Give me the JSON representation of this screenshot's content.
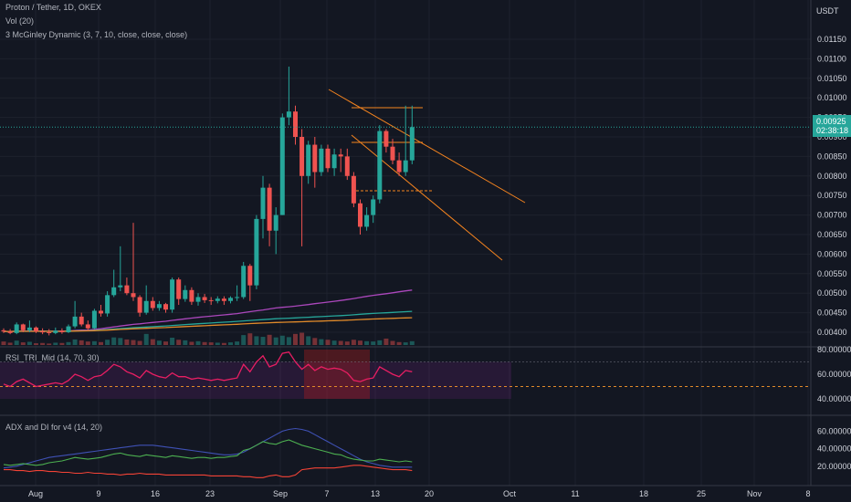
{
  "header": {
    "symbol_line": "Proton / Tether, 1D, OKEX",
    "vol_label": "Vol (20)",
    "mcginley_label": "3 McGinley Dynamic (3, 7, 10, close, close, close)",
    "currency": "USDT"
  },
  "last_price": {
    "value": "0.00925",
    "countdown": "02:38:18",
    "color": "#26a69a"
  },
  "panels": {
    "rsi_label": "RSI_TRI_Mid (14, 70, 30)",
    "adx_label": "ADX and DI for v4 (14, 20)"
  },
  "colors": {
    "up": "#26a69a",
    "down": "#ef5350",
    "background": "#131722",
    "rsi": "#e91e63",
    "mcginley_fast": "#ab47bc",
    "mcginley_mid": "#26a69a",
    "mcginley_slow": "#e18a2a",
    "adx": "#3f51b5",
    "di_plus": "#4caf50",
    "di_minus": "#f44336",
    "channel": "#f5841f"
  },
  "chart_data": {
    "type": "candlestick",
    "interval": "1D",
    "y_axis": {
      "ticks": [
        "0.01150",
        "0.01100",
        "0.01050",
        "0.01000",
        "0.00950",
        "0.00900",
        "0.00850",
        "0.00800",
        "0.00750",
        "0.00700",
        "0.00650",
        "0.00600",
        "0.00550",
        "0.00500",
        "0.00450",
        "0.00400"
      ],
      "range": [
        0.0038,
        0.0121
      ]
    },
    "x_axis": {
      "ticks": [
        "Aug",
        "9",
        "16",
        "23",
        "Sep",
        "7",
        "13",
        "20",
        "Oct",
        "11",
        "18",
        "25",
        "Nov",
        "8"
      ]
    },
    "ohlc": [
      [
        0.00405,
        0.0041,
        0.00398,
        0.00402
      ],
      [
        0.00402,
        0.00408,
        0.00395,
        0.00398
      ],
      [
        0.00398,
        0.00425,
        0.00395,
        0.0042
      ],
      [
        0.0042,
        0.00422,
        0.004,
        0.00405
      ],
      [
        0.00405,
        0.0043,
        0.004,
        0.00412
      ],
      [
        0.00412,
        0.00415,
        0.00398,
        0.00402
      ],
      [
        0.00402,
        0.0041,
        0.00395,
        0.004
      ],
      [
        0.004,
        0.00408,
        0.00392,
        0.00398
      ],
      [
        0.00398,
        0.00412,
        0.00395,
        0.00404
      ],
      [
        0.00404,
        0.0041,
        0.00396,
        0.004
      ],
      [
        0.004,
        0.0042,
        0.00398,
        0.00415
      ],
      [
        0.00415,
        0.0048,
        0.0041,
        0.0044
      ],
      [
        0.0044,
        0.0045,
        0.00415,
        0.0042
      ],
      [
        0.0042,
        0.0043,
        0.00405,
        0.0041
      ],
      [
        0.0041,
        0.0046,
        0.00408,
        0.00455
      ],
      [
        0.00455,
        0.0047,
        0.0044,
        0.00448
      ],
      [
        0.00448,
        0.00505,
        0.0044,
        0.00495
      ],
      [
        0.00495,
        0.0056,
        0.0049,
        0.00515
      ],
      [
        0.00515,
        0.0062,
        0.00505,
        0.0052
      ],
      [
        0.0052,
        0.0054,
        0.00495,
        0.005
      ],
      [
        0.005,
        0.0068,
        0.0048,
        0.0049
      ],
      [
        0.0049,
        0.00495,
        0.0044,
        0.0045
      ],
      [
        0.0045,
        0.0052,
        0.00445,
        0.0048
      ],
      [
        0.0048,
        0.0049,
        0.00455,
        0.00462
      ],
      [
        0.00462,
        0.0048,
        0.00455,
        0.00472
      ],
      [
        0.00472,
        0.00475,
        0.0045,
        0.00458
      ],
      [
        0.00458,
        0.0054,
        0.0045,
        0.00535
      ],
      [
        0.00535,
        0.0054,
        0.0047,
        0.00485
      ],
      [
        0.00485,
        0.0052,
        0.00478,
        0.00508
      ],
      [
        0.00508,
        0.00515,
        0.0047,
        0.00478
      ],
      [
        0.00478,
        0.005,
        0.00468,
        0.0049
      ],
      [
        0.0049,
        0.00498,
        0.00475,
        0.00482
      ],
      [
        0.00482,
        0.0049,
        0.0047,
        0.0048
      ],
      [
        0.0048,
        0.00492,
        0.00474,
        0.00486
      ],
      [
        0.00486,
        0.00492,
        0.0047,
        0.0048
      ],
      [
        0.0048,
        0.00492,
        0.00474,
        0.00488
      ],
      [
        0.00488,
        0.0052,
        0.0048,
        0.0049
      ],
      [
        0.0049,
        0.0058,
        0.00485,
        0.0057
      ],
      [
        0.0057,
        0.00575,
        0.0048,
        0.0052
      ],
      [
        0.0052,
        0.007,
        0.0051,
        0.0069
      ],
      [
        0.0069,
        0.008,
        0.0064,
        0.0077
      ],
      [
        0.0077,
        0.0078,
        0.0062,
        0.0066
      ],
      [
        0.0066,
        0.0072,
        0.006,
        0.007
      ],
      [
        0.007,
        0.0096,
        0.007,
        0.0095
      ],
      [
        0.0095,
        0.0108,
        0.0093,
        0.00965
      ],
      [
        0.00965,
        0.0098,
        0.0088,
        0.009
      ],
      [
        0.009,
        0.0092,
        0.0062,
        0.008
      ],
      [
        0.008,
        0.0089,
        0.0078,
        0.0088
      ],
      [
        0.0088,
        0.009,
        0.0077,
        0.0081
      ],
      [
        0.0081,
        0.0088,
        0.008,
        0.0087
      ],
      [
        0.0087,
        0.0088,
        0.0081,
        0.0082
      ],
      [
        0.0082,
        0.0087,
        0.008,
        0.00855
      ],
      [
        0.00855,
        0.0087,
        0.0081,
        0.0085
      ],
      [
        0.0085,
        0.0087,
        0.0079,
        0.008
      ],
      [
        0.008,
        0.0081,
        0.0072,
        0.0073
      ],
      [
        0.0073,
        0.0074,
        0.0065,
        0.0067
      ],
      [
        0.0067,
        0.0072,
        0.0066,
        0.007
      ],
      [
        0.007,
        0.0075,
        0.0068,
        0.0074
      ],
      [
        0.0074,
        0.0093,
        0.0073,
        0.00915
      ],
      [
        0.00915,
        0.0092,
        0.0086,
        0.00875
      ],
      [
        0.00875,
        0.00895,
        0.0083,
        0.0084
      ],
      [
        0.0084,
        0.0086,
        0.008,
        0.0081
      ],
      [
        0.0081,
        0.0098,
        0.008,
        0.0084
      ],
      [
        0.0084,
        0.0098,
        0.0083,
        0.00925
      ]
    ],
    "volume": [
      1.2,
      0.8,
      1.5,
      0.9,
      1.1,
      0.6,
      0.7,
      0.5,
      0.8,
      0.7,
      1.0,
      1.9,
      1.6,
      1.2,
      1.3,
      1.0,
      1.8,
      2.6,
      2.4,
      1.9,
      1.7,
      1.4,
      3.8,
      2.0,
      1.5,
      1.2,
      2.5,
      1.8,
      1.6,
      1.1,
      1.3,
      1.0,
      0.9,
      0.8,
      0.7,
      0.9,
      1.2,
      3.4,
      4.0,
      3.0,
      2.8,
      3.5,
      2.6,
      3.2,
      2.7,
      3.8,
      4.2,
      3.0,
      2.4,
      2.0,
      1.8,
      1.5,
      1.4,
      1.2,
      1.8,
      1.5,
      1.3,
      1.2,
      1.6,
      2.2,
      1.4,
      1.0,
      0.9,
      1.3
    ],
    "rsi": {
      "levels": [
        80,
        70,
        60,
        50,
        40
      ],
      "ticks": [
        "80.00000",
        "60.00000",
        "40.00000"
      ],
      "last": 62
    },
    "adx": {
      "ticks": [
        "60.00000",
        "40.00000",
        "20.00000"
      ]
    }
  }
}
